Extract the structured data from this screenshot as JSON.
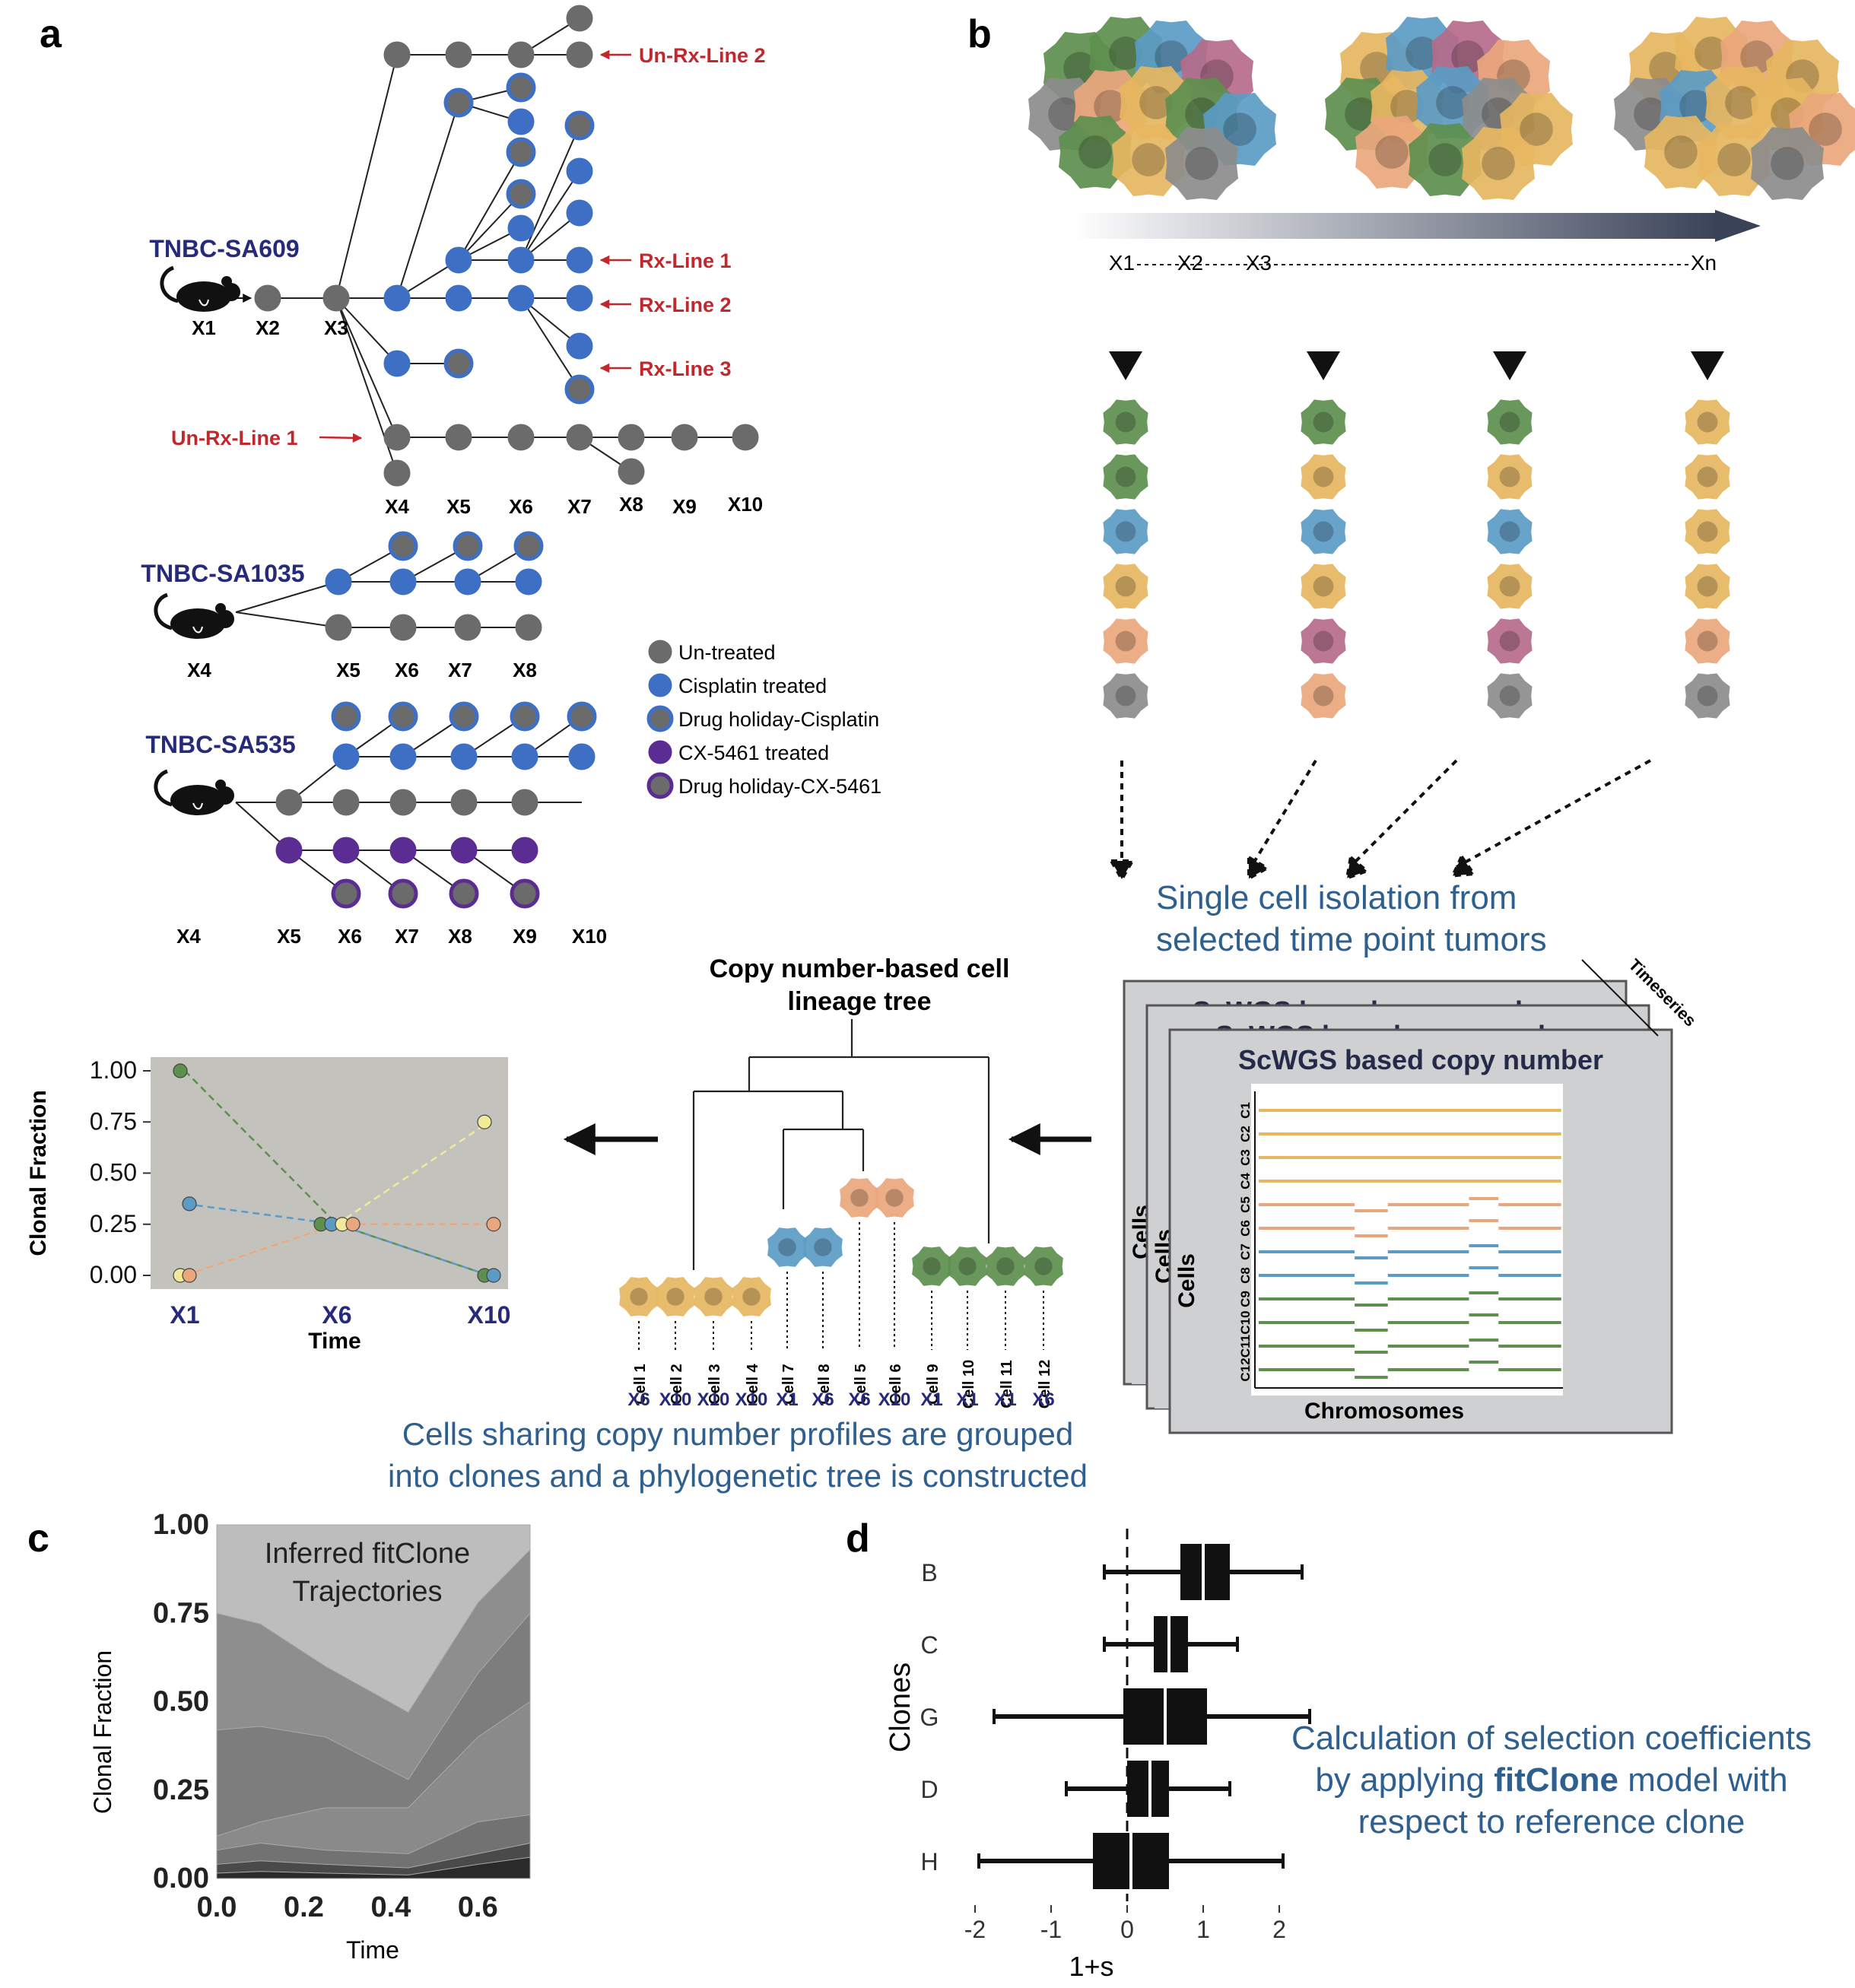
{
  "panels": {
    "a": "a",
    "b": "b",
    "c": "c",
    "d": "d"
  },
  "panel_a": {
    "sa609": {
      "title": "TNBC-SA609",
      "x_labels": [
        "X1",
        "X2",
        "X3",
        "X4",
        "X5",
        "X6",
        "X7",
        "X8",
        "X9",
        "X10"
      ],
      "lines": [
        "Un-Rx-Line 2",
        "Rx-Line 1",
        "Rx-Line 2",
        "Rx-Line 3",
        "Un-Rx-Line 1"
      ]
    },
    "sa1035": {
      "title": "TNBC-SA1035",
      "x_labels": [
        "X4",
        "X5",
        "X6",
        "X7",
        "X8"
      ]
    },
    "sa535": {
      "title": "TNBC-SA535",
      "x_labels": [
        "X4",
        "X5",
        "X6",
        "X7",
        "X8",
        "X9",
        "X10"
      ]
    },
    "legend": [
      {
        "label": "Un-treated",
        "fill": "#6b6b6b",
        "stroke": "#6b6b6b"
      },
      {
        "label": "Cisplatin treated",
        "fill": "#3d6fc4",
        "stroke": "#3d6fc4"
      },
      {
        "label": "Drug holiday-Cisplatin",
        "fill": "#6b6b6b",
        "stroke": "#3d6fc4"
      },
      {
        "label": "CX-5461 treated",
        "fill": "#5b2c91",
        "stroke": "#5b2c91"
      },
      {
        "label": "Drug holiday-CX-5461",
        "fill": "#6b6b6b",
        "stroke": "#5b2c91"
      }
    ]
  },
  "panel_b": {
    "timeline": [
      "X1",
      "X2",
      "X3",
      "Xn"
    ],
    "caption_lines": [
      "Single cell isolation from",
      "selected time point tumors"
    ],
    "card_title": "ScWGS based copy number",
    "timeseries_label": "Timeseries",
    "cells_label": "Cells",
    "chromosomes_label": "Chromosomes",
    "cell_ids": [
      "C1",
      "C2",
      "C3",
      "C4",
      "C5",
      "C6",
      "C7",
      "C8",
      "C9",
      "C10",
      "C11",
      "C12"
    ]
  },
  "lineage": {
    "title_lines": [
      "Copy number-based cell",
      "lineage tree"
    ],
    "cells": [
      {
        "name": "Cell 1",
        "time": "X6"
      },
      {
        "name": "Cell 2",
        "time": "X10"
      },
      {
        "name": "Cell 3",
        "time": "X10"
      },
      {
        "name": "Cell 4",
        "time": "X10"
      },
      {
        "name": "Cell 7",
        "time": "X1"
      },
      {
        "name": "Cell 8",
        "time": "X6"
      },
      {
        "name": "Cell 5",
        "time": "X6"
      },
      {
        "name": "Cell 6",
        "time": "X10"
      },
      {
        "name": "Cell 9",
        "time": "X1"
      },
      {
        "name": "Cell 10",
        "time": "X1"
      },
      {
        "name": "Cell 11",
        "time": "X1"
      },
      {
        "name": "Cell 12",
        "time": "X6"
      }
    ],
    "caption_lines": [
      "Cells sharing copy number profiles are grouped",
      "into clones and a phylogenetic tree is constructed"
    ]
  },
  "chart_data": [
    {
      "type": "line",
      "ylabel": "Clonal Fraction",
      "xlabel": "Time",
      "categories": [
        "X1",
        "X6",
        "X10"
      ],
      "ylim": [
        0,
        1
      ],
      "yticks": [
        "0.00",
        "0.25",
        "0.50",
        "0.75",
        "1.00"
      ],
      "series": [
        {
          "color": "#5d8f4e",
          "values": [
            1.0,
            0.25,
            0.0
          ]
        },
        {
          "color": "#5b9bc4",
          "values": [
            0.35,
            0.25,
            0.0
          ]
        },
        {
          "color": "#f0ea9a",
          "values": [
            0.0,
            0.25,
            0.75
          ]
        },
        {
          "color": "#eaa77c",
          "values": [
            0.0,
            0.25,
            0.25
          ]
        }
      ]
    },
    {
      "type": "area",
      "title_lines": [
        "Inferred fitClone",
        "Trajectories"
      ],
      "ylabel": "Clonal Fraction",
      "xlabel": "Time",
      "xticks": [
        "0.0",
        "0.2",
        "0.4",
        "0.6"
      ],
      "yticks": [
        "0.00",
        "0.25",
        "0.50",
        "0.75",
        "1.00"
      ],
      "xlim": [
        0,
        0.72
      ],
      "ylim": [
        0,
        1
      ]
    },
    {
      "type": "box",
      "ylabel": "Clones",
      "xlabel": "1+s",
      "xticks": [
        "-2",
        "-1",
        "0",
        "1",
        "2"
      ],
      "xlim": [
        -2.2,
        2.2
      ],
      "boxes": [
        {
          "label": "B",
          "whisker_low": -0.3,
          "q1": 0.7,
          "median": 1.0,
          "q3": 1.35,
          "whisker_high": 2.3
        },
        {
          "label": "C",
          "whisker_low": -0.3,
          "q1": 0.35,
          "median": 0.55,
          "q3": 0.8,
          "whisker_high": 1.45
        },
        {
          "label": "G",
          "whisker_low": -1.75,
          "q1": -0.05,
          "median": 0.5,
          "q3": 1.05,
          "whisker_high": 2.4
        },
        {
          "label": "D",
          "whisker_low": -0.8,
          "q1": 0.0,
          "median": 0.3,
          "q3": 0.55,
          "whisker_high": 1.35
        },
        {
          "label": "H",
          "whisker_low": -1.95,
          "q1": -0.45,
          "median": 0.05,
          "q3": 0.55,
          "whisker_high": 2.05
        }
      ]
    }
  ],
  "panel_d_caption": {
    "line1": "Calculation of selection coefficients",
    "line2_pre": "by applying ",
    "line2_bold": "fitClone",
    "line2_post": " model with",
    "line3": "respect to reference clone"
  },
  "colors": {
    "untreated": "#6b6b6b",
    "cisplatin": "#3d6fc4",
    "cx5461": "#5b2c91",
    "line_red": "#c0282d",
    "navy": "#262a7a",
    "caption_blue": "#2f5f8f",
    "clone_green": "#5d8f4e",
    "clone_yellow": "#e6b661",
    "clone_blue": "#5b9bc4",
    "clone_orange": "#eaa77c",
    "clone_mauve": "#b56b8a",
    "clone_gray": "#8c8c8c"
  }
}
